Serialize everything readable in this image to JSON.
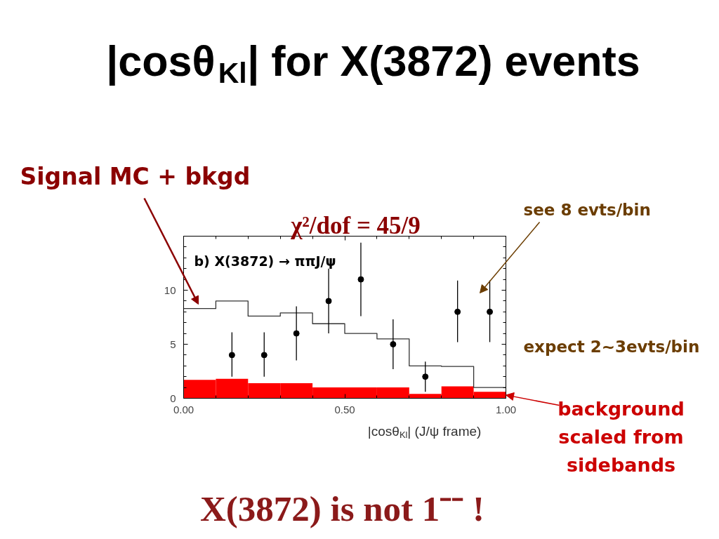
{
  "chart_data": {
    "type": "histogram",
    "title": "|cosθ$_{Kl}$| for X(3872) events",
    "xlabel": "|cosθ$_{Kl}$| (J/ψ frame)",
    "bins": [
      0,
      0.1,
      0.2,
      0.3,
      0.4,
      0.5,
      0.6,
      0.7,
      0.8,
      0.9,
      1.0
    ],
    "xlim": [
      0,
      1
    ],
    "ylim": [
      0,
      15
    ],
    "xticks": [
      {
        "value": 0,
        "label": "0.00"
      },
      {
        "value": 0.1,
        "label": null
      },
      {
        "value": 0.2,
        "label": null
      },
      {
        "value": 0.3,
        "label": null
      },
      {
        "value": 0.4,
        "label": null
      },
      {
        "value": 0.5,
        "label": "0.50"
      },
      {
        "value": 0.6,
        "label": null
      },
      {
        "value": 0.7,
        "label": null
      },
      {
        "value": 0.8,
        "label": null
      },
      {
        "value": 0.9,
        "label": null
      },
      {
        "value": 1,
        "label": "1.00"
      }
    ],
    "yticks": [
      0,
      {
        "value": 1,
        "label": null
      },
      {
        "value": 2,
        "label": null
      },
      {
        "value": 3,
        "label": null
      },
      {
        "value": 4,
        "label": null
      },
      5,
      {
        "value": 6,
        "label": null
      },
      {
        "value": 7,
        "label": null
      },
      {
        "value": 8,
        "label": null
      },
      {
        "value": 9,
        "label": null
      },
      10,
      {
        "value": 11,
        "label": null
      },
      {
        "value": 12,
        "label": null
      },
      {
        "value": 13,
        "label": null
      },
      {
        "value": 14,
        "label": null
      },
      {
        "value": 15,
        "label": null
      }
    ],
    "grid": false,
    "series": [
      {
        "color": "#ff0000",
        "values": [
          1.7,
          1.8,
          1.4,
          1.4,
          1.0,
          1.0,
          1.0,
          0.4,
          1.1,
          0.6
        ]
      },
      {
        "type": "line",
        "color": "#333333",
        "x": [
          0,
          0.1,
          0.1,
          0.2,
          0.2,
          0.3,
          0.3,
          0.4,
          0.4,
          0.5,
          0.5,
          0.6,
          0.6,
          0.7,
          0.7,
          0.8,
          0.8,
          0.9,
          0.9,
          1.0
        ],
        "values": [
          8.3,
          8.3,
          9.0,
          9.0,
          7.6,
          7.6,
          7.9,
          7.9,
          6.9,
          6.9,
          6.0,
          6.0,
          5.5,
          5.5,
          3.0,
          3.0,
          2.95,
          2.95,
          1.0,
          1.0
        ]
      },
      {
        "type": "scatter",
        "color": "#000000",
        "marker": "circle",
        "x": [
          0.15,
          0.25,
          0.35,
          0.45,
          0.55,
          0.65,
          0.75,
          0.85,
          0.95
        ],
        "values": [
          4,
          4,
          6,
          9,
          11,
          5,
          2,
          8,
          8
        ],
        "errors": [
          [
            2.0,
            6.1
          ],
          [
            2.0,
            6.1
          ],
          [
            3.5,
            8.5
          ],
          [
            6.0,
            12.0
          ],
          [
            7.6,
            14.4
          ],
          [
            2.7,
            7.3
          ],
          [
            0.6,
            3.4
          ],
          [
            5.2,
            10.9
          ],
          [
            5.2,
            10.9
          ]
        ]
      }
    ],
    "annotations": [
      "Signal MC + bkgd",
      "see 8 evts/bin",
      "χ²/dof = 45/9",
      "b) X(3872) → ππJ/ψ",
      "expect 2~3evts/bin",
      {
        "text": "background scaled from sidebands",
        "x": 1.0,
        "y": 0.3
      },
      "X(3872) is not 1⁻⁻ !"
    ]
  }
}
